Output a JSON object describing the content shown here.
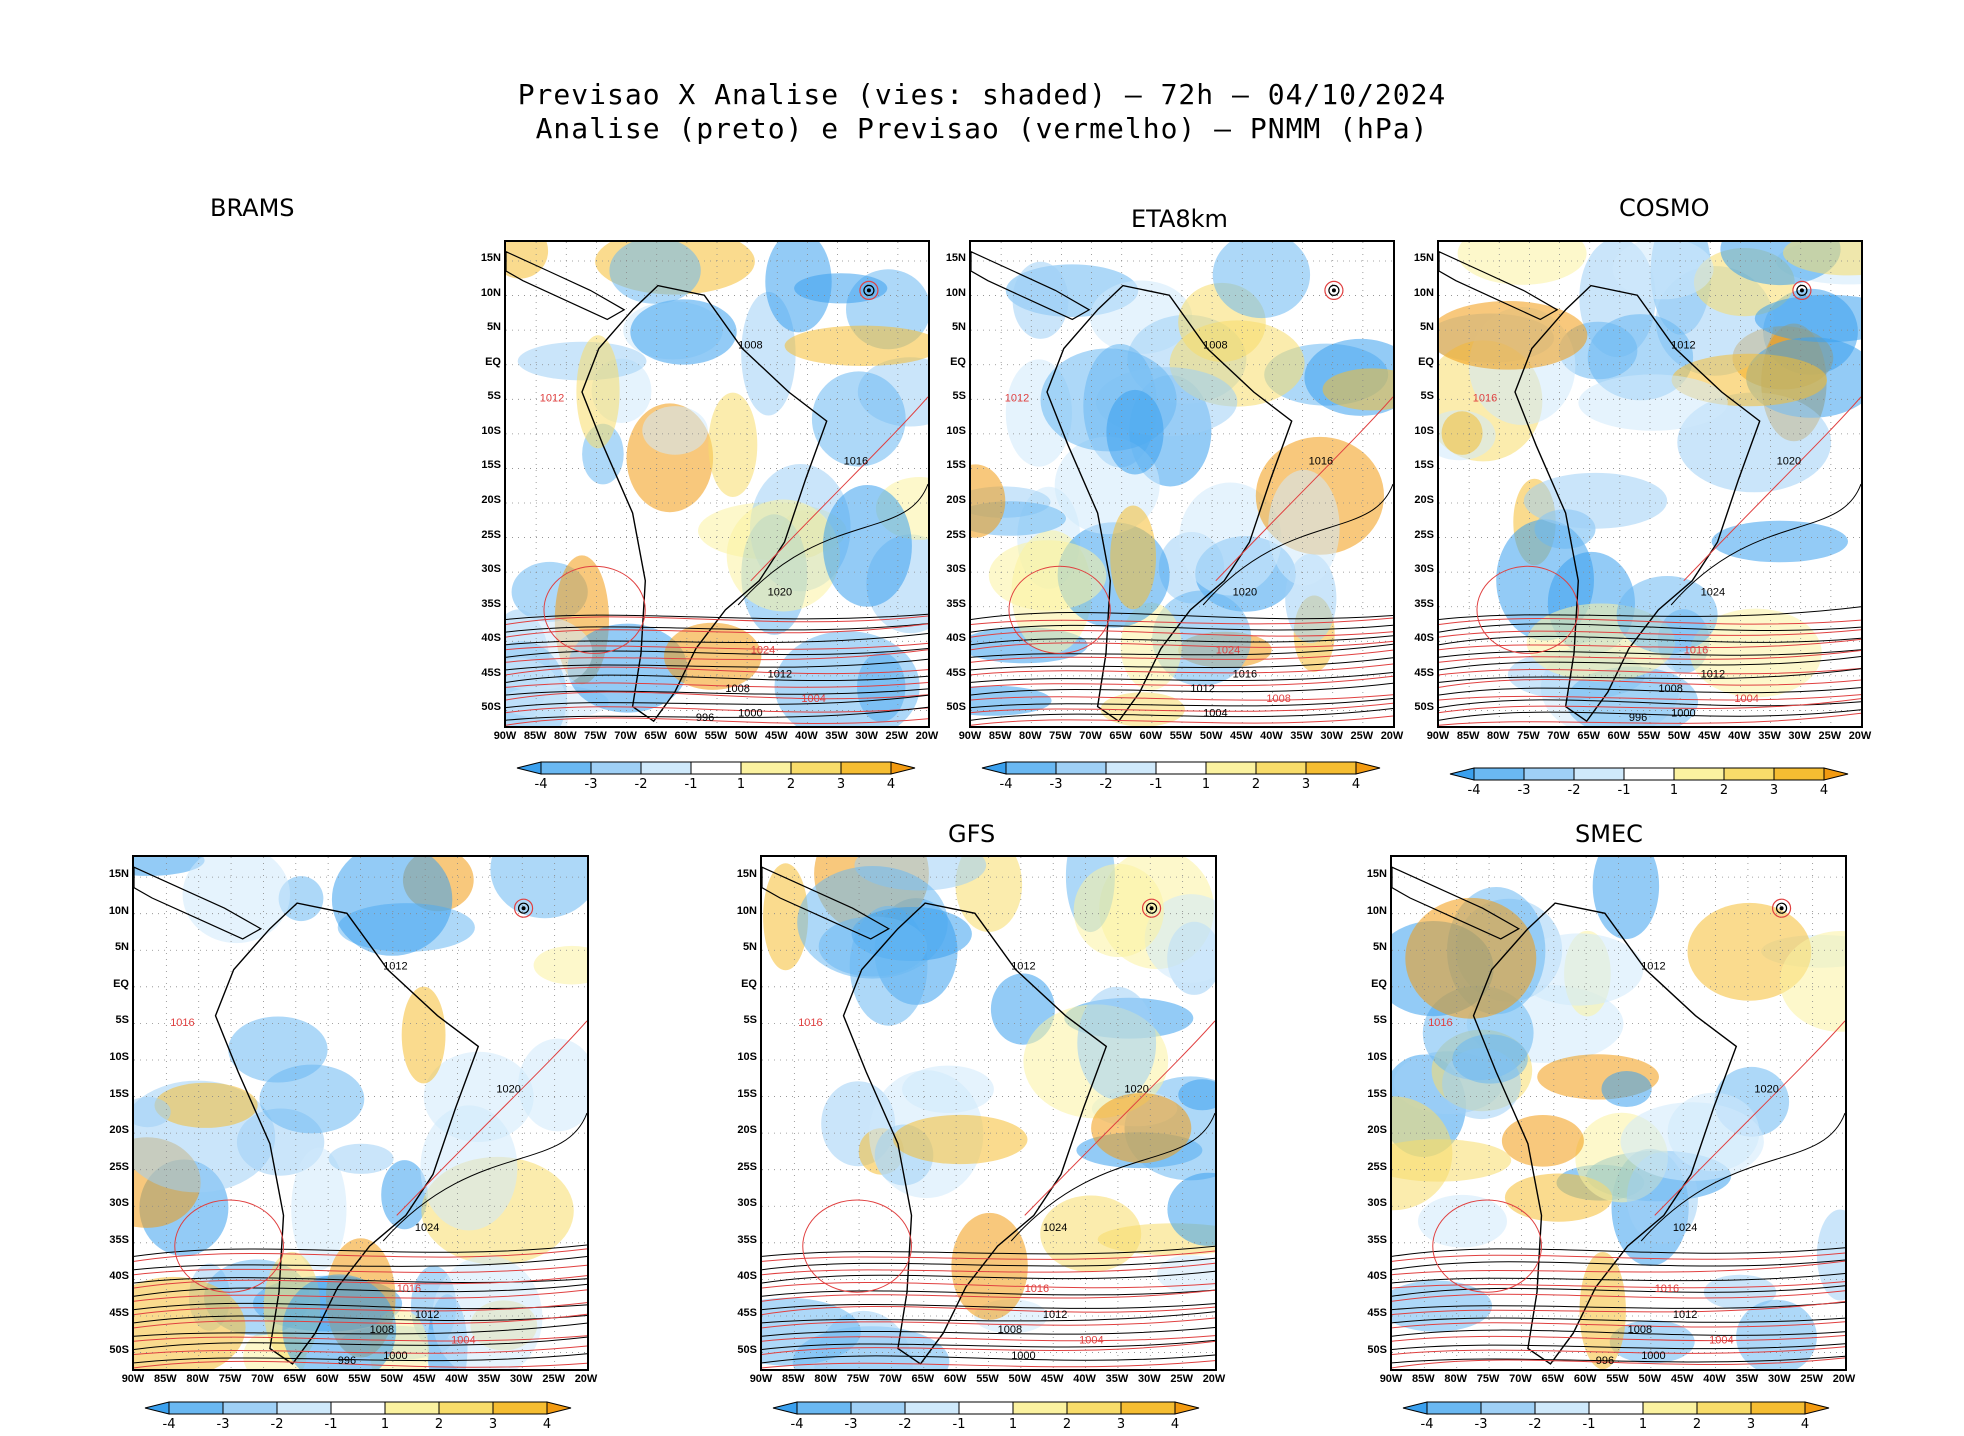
{
  "figure": {
    "title_line1": "Previsao X Analise (vies: shaded) – 72h – 04/10/2024",
    "title_line2": "Analise (preto) e Previsao (vermelho) – PNMM (hPa)"
  },
  "axes": {
    "lat_labels": [
      "15N",
      "10N",
      "5N",
      "EQ",
      "5S",
      "10S",
      "15S",
      "20S",
      "25S",
      "30S",
      "35S",
      "40S",
      "45S",
      "50S"
    ],
    "lon_labels": [
      "90W",
      "85W",
      "80W",
      "75W",
      "70W",
      "65W",
      "60W",
      "55W",
      "50W",
      "45W",
      "40W",
      "35W",
      "30W",
      "25W",
      "20W"
    ]
  },
  "colorbar": {
    "labels": [
      "-4",
      "-3",
      "-2",
      "-1",
      "1",
      "2",
      "3",
      "4"
    ],
    "colors": [
      "#3aa0ee",
      "#6ab8f2",
      "#9fd0f6",
      "#cfe9fb",
      "#ffffff",
      "#fbf2a0",
      "#f8dc6a",
      "#f5bd32",
      "#f29a10"
    ]
  },
  "colors": {
    "analysis_contour": "#000000",
    "forecast_contour": "#e04040"
  },
  "panels": [
    {
      "title": "BRAMS",
      "contour_labels": [
        "1008",
        "1012",
        "1016",
        "1020",
        "1024",
        "1012",
        "1008",
        "1004",
        "1000",
        "996"
      ]
    },
    {
      "title": "ETA8km",
      "contour_labels": [
        "1008",
        "1012",
        "1016",
        "1020",
        "1024",
        "1016",
        "1012",
        "1008",
        "1004"
      ]
    },
    {
      "title": "COSMO",
      "contour_labels": [
        "1012",
        "1016",
        "1020",
        "1024",
        "1016",
        "1012",
        "1008",
        "1004",
        "1000",
        "996"
      ]
    },
    {
      "title": "",
      "contour_labels": [
        "1012",
        "1016",
        "1020",
        "1024",
        "1016",
        "1012",
        "1008",
        "1004",
        "1000",
        "996"
      ]
    },
    {
      "title": "GFS",
      "contour_labels": [
        "1012",
        "1016",
        "1020",
        "1024",
        "1016",
        "1012",
        "1008",
        "1004",
        "1000"
      ]
    },
    {
      "title": "SMEC",
      "contour_labels": [
        "1012",
        "1016",
        "1020",
        "1024",
        "1016",
        "1012",
        "1008",
        "1004",
        "1000",
        "996"
      ]
    }
  ]
}
